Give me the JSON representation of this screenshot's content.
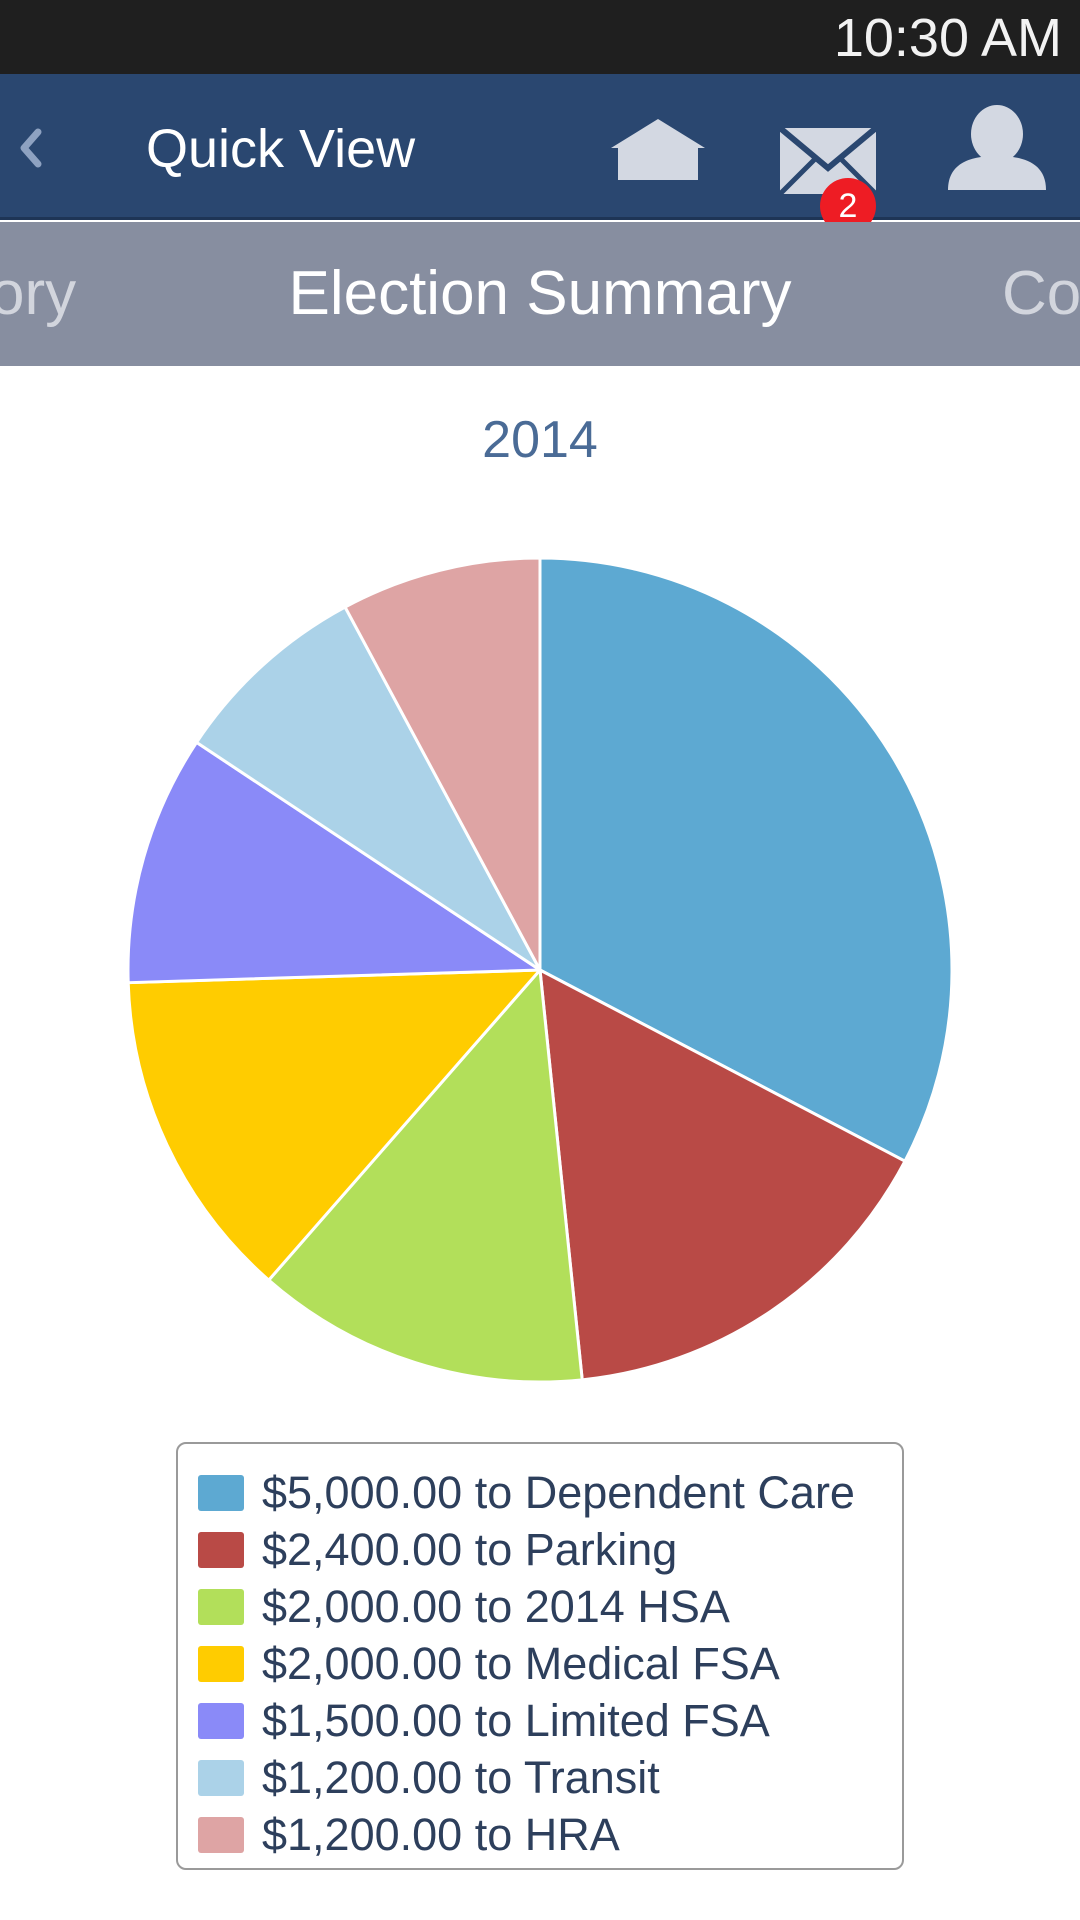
{
  "status_bar": {
    "time": "10:30 AM"
  },
  "header": {
    "title": "Quick View",
    "back_icon": "chevron-left-icon",
    "home_icon": "home-icon",
    "mail_icon": "mail-icon",
    "mail_badge_count": "2",
    "user_icon": "user-icon"
  },
  "tabs": {
    "prev_label": "ory",
    "active_label": "Election Summary",
    "next_label": "Co"
  },
  "chart_data": {
    "type": "pie",
    "title": "2014",
    "categories": [
      "Dependent Care",
      "Parking",
      "2014 HSA",
      "Medical FSA",
      "Limited FSA",
      "Transit",
      "HRA"
    ],
    "values": [
      5000,
      2400,
      2000,
      2000,
      1500,
      1200,
      1200
    ],
    "colors": [
      "#5da9d2",
      "#b94a46",
      "#b2df5a",
      "#ffcc00",
      "#8a8af8",
      "#abd2e8",
      "#dea4a4"
    ],
    "legend_labels": [
      "$5,000.00 to Dependent Care",
      "$2,400.00 to Parking",
      "$2,000.00 to 2014 HSA",
      "$2,000.00 to Medical FSA",
      "$1,500.00 to Limited FSA",
      "$1,200.00 to Transit",
      "$1,200.00 to HRA"
    ],
    "legend_position": "bottom",
    "start_angle": "top",
    "direction": "clockwise"
  }
}
